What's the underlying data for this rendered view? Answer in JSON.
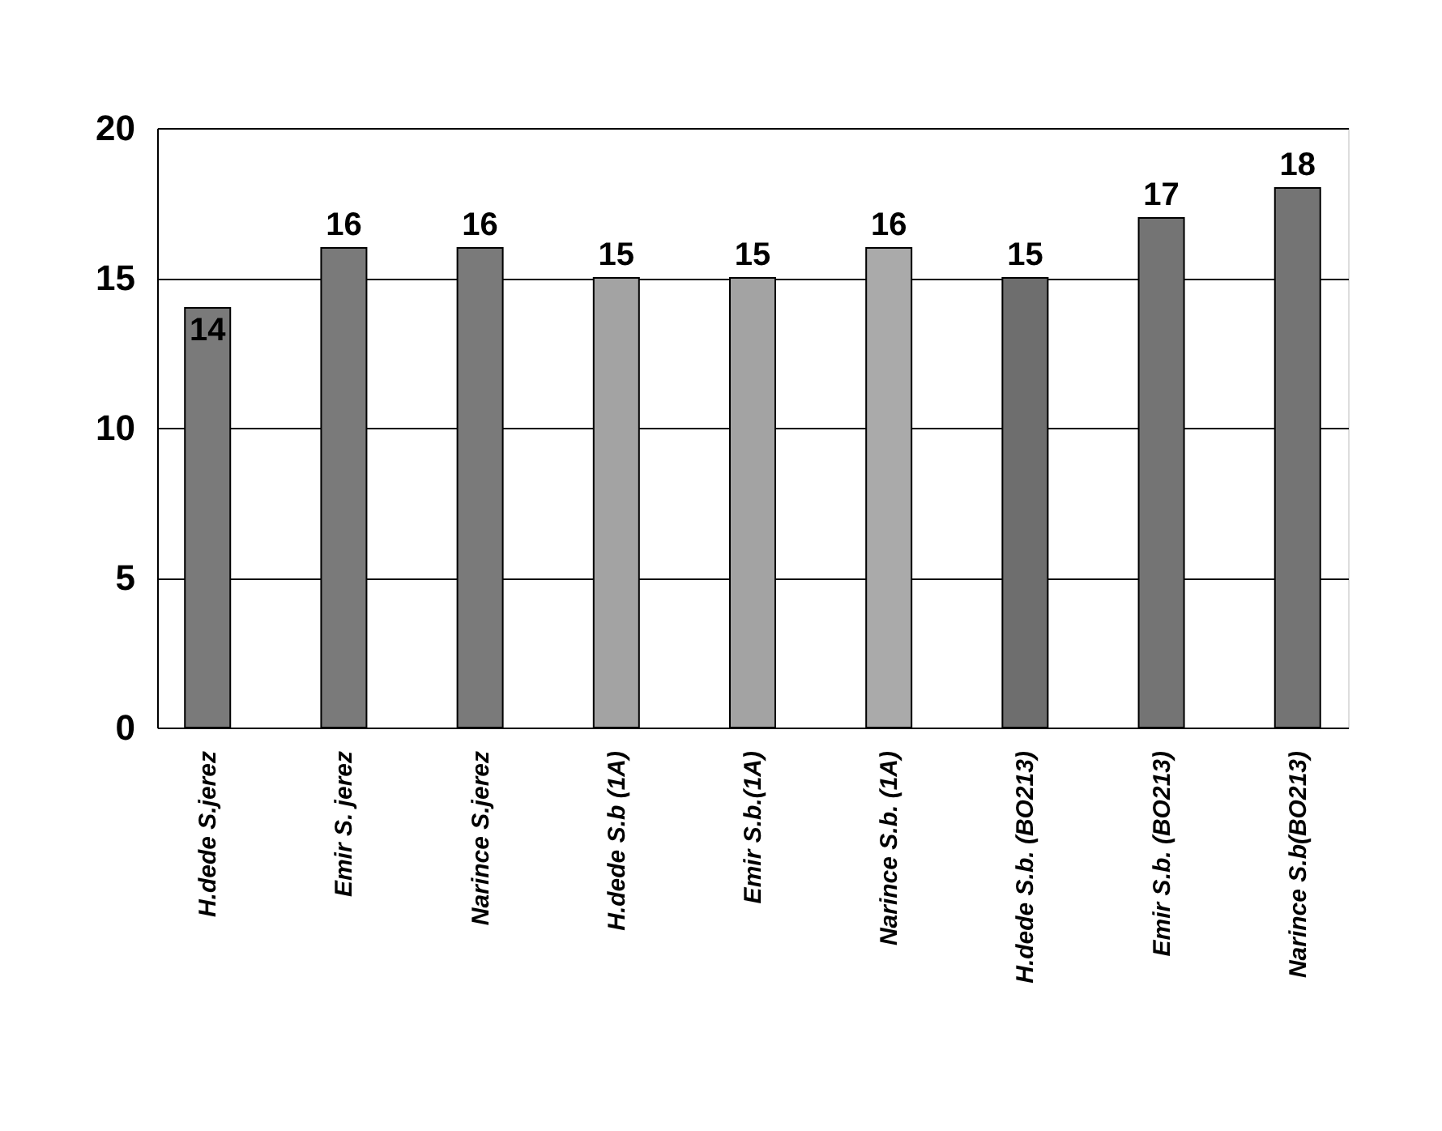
{
  "chart_data": {
    "type": "bar",
    "categories": [
      "H.dede S.jerez",
      "Emir S. jerez",
      "Narince S.jerez",
      "H.dede S.b (1A)",
      "Emir S.b.(1A)",
      "Narince S.b. (1A)",
      "H.dede S.b. (BO213)",
      "Emir S.b. (BO213)",
      "Narince S.b(BO213)"
    ],
    "values": [
      14,
      16,
      16,
      15,
      15,
      16,
      15,
      17,
      18
    ],
    "colors": [
      "#7a7a7a",
      "#7a7a7a",
      "#7a7a7a",
      "#a3a3a3",
      "#a3a3a3",
      "#aaaaaa",
      "#6e6e6e",
      "#747474",
      "#747474"
    ],
    "ylim": [
      0,
      20
    ],
    "yticks": [
      0,
      5,
      10,
      15,
      20
    ],
    "grid": "y",
    "data_labels": true
  }
}
